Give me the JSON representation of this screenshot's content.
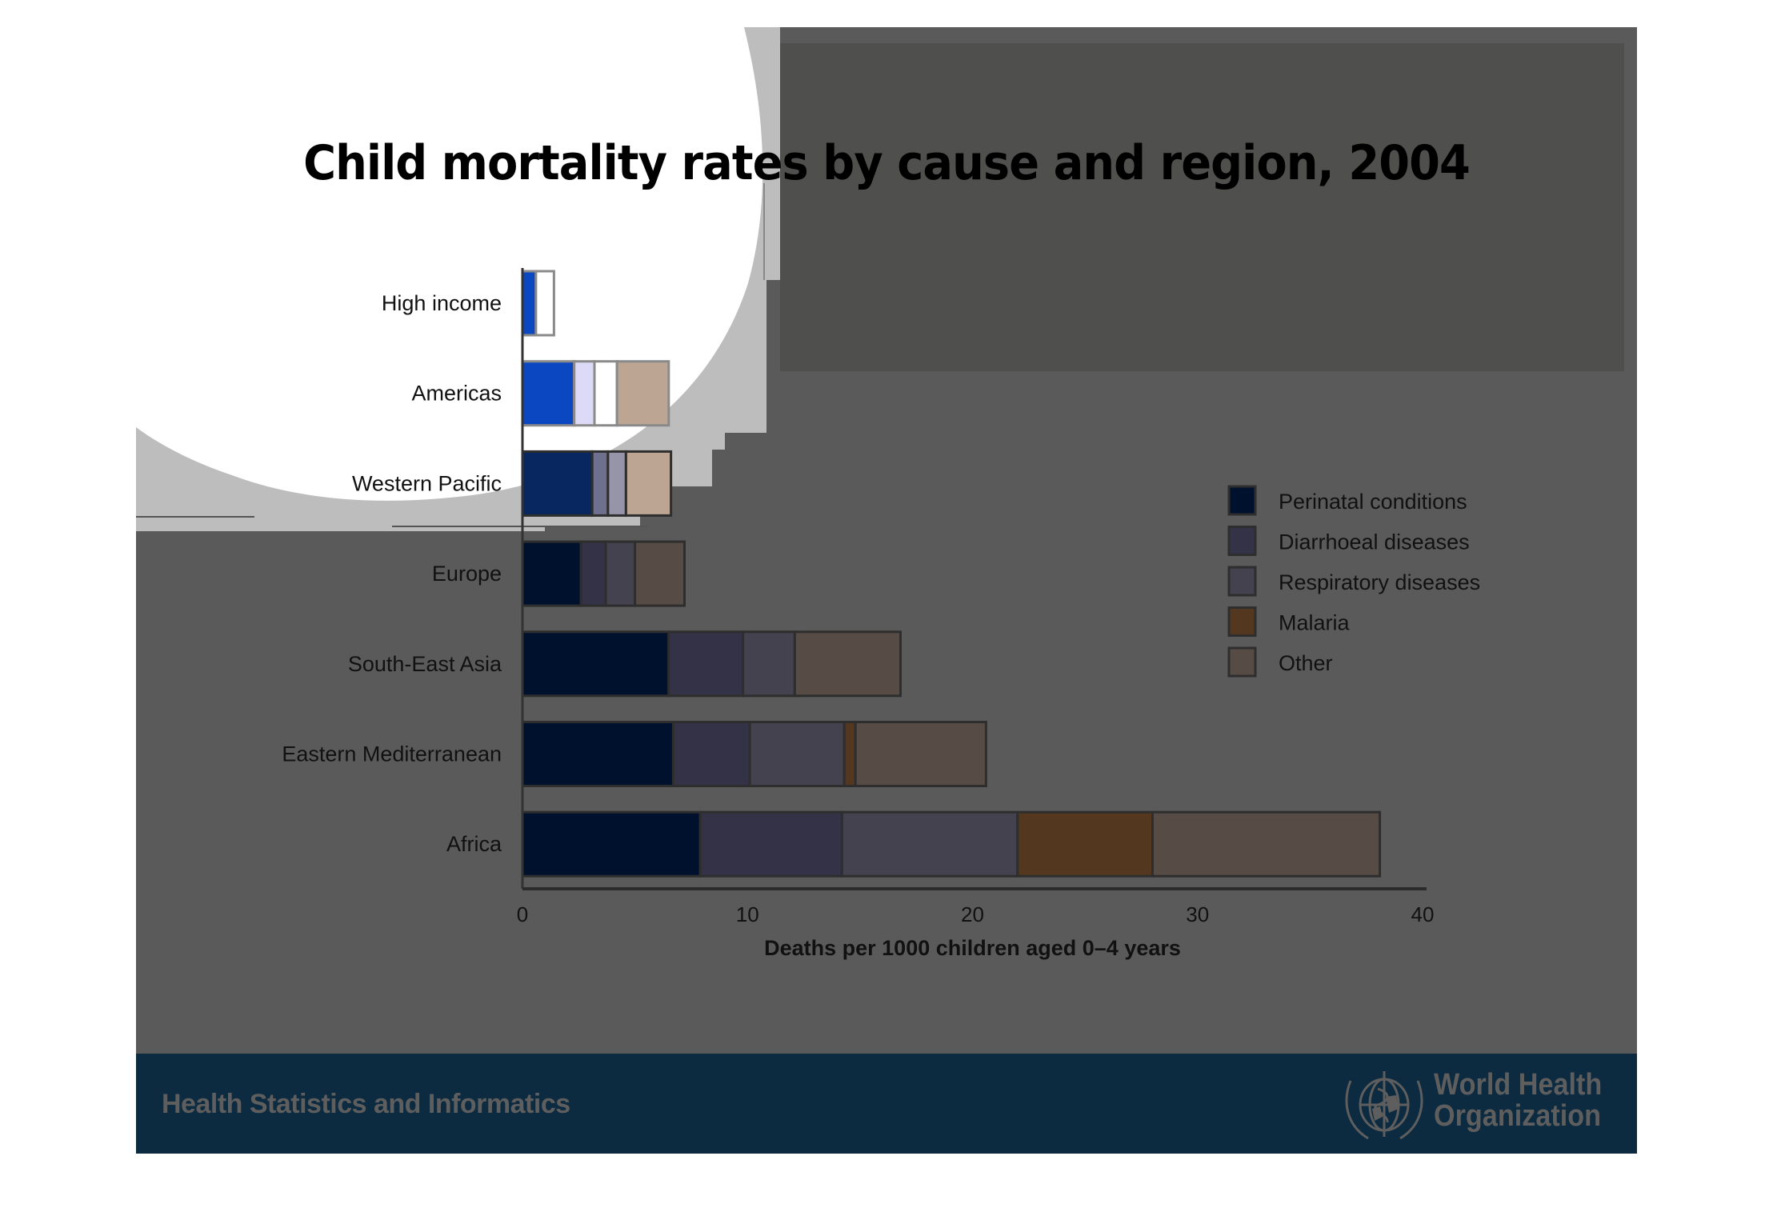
{
  "slide": {
    "title": "Child mortality rates by cause and region, 2004",
    "footer_left": "Health Statistics and Informatics",
    "org_name_line1": "World Health",
    "org_name_line2": "Organization",
    "logo_icon": "who-emblem-icon"
  },
  "colors": {
    "slide_background": "#5a5a5a",
    "footer_background": "#0c2a40",
    "footer_text": "#5e5e5e"
  },
  "chart_data": {
    "type": "bar",
    "orientation": "horizontal",
    "stacked": true,
    "title": "Child mortality rates by cause and region, 2004",
    "xlabel": "Deaths per 1000 children aged 0–4 years",
    "ylabel": "",
    "xlim": [
      0,
      40
    ],
    "xticks": [
      0,
      10,
      20,
      30,
      40
    ],
    "grid": false,
    "legend_position": "right",
    "categories": [
      "High income",
      "Americas",
      "Western Pacific",
      "Europe",
      "South-East Asia",
      "Eastern Mediterranean",
      "Africa"
    ],
    "series": [
      {
        "name": "Perinatal conditions",
        "color": "#00112e",
        "values": [
          0.6,
          2.3,
          3.1,
          2.6,
          6.5,
          6.7,
          7.9
        ]
      },
      {
        "name": "Diarrhoeal diseases",
        "color": "#333246",
        "values": [
          0.0,
          0.9,
          0.7,
          1.1,
          3.3,
          3.4,
          6.3
        ]
      },
      {
        "name": "Respiratory diseases",
        "color": "#43424e",
        "values": [
          0.0,
          1.0,
          0.8,
          1.3,
          2.3,
          4.2,
          7.8
        ]
      },
      {
        "name": "Malaria",
        "color": "#54371f",
        "values": [
          0.0,
          0.0,
          0.0,
          0.0,
          0.0,
          0.5,
          6.0
        ]
      },
      {
        "name": "Other",
        "color": "#564c45",
        "values": [
          0.8,
          2.3,
          2.0,
          2.2,
          4.7,
          5.8,
          10.1
        ]
      }
    ]
  }
}
